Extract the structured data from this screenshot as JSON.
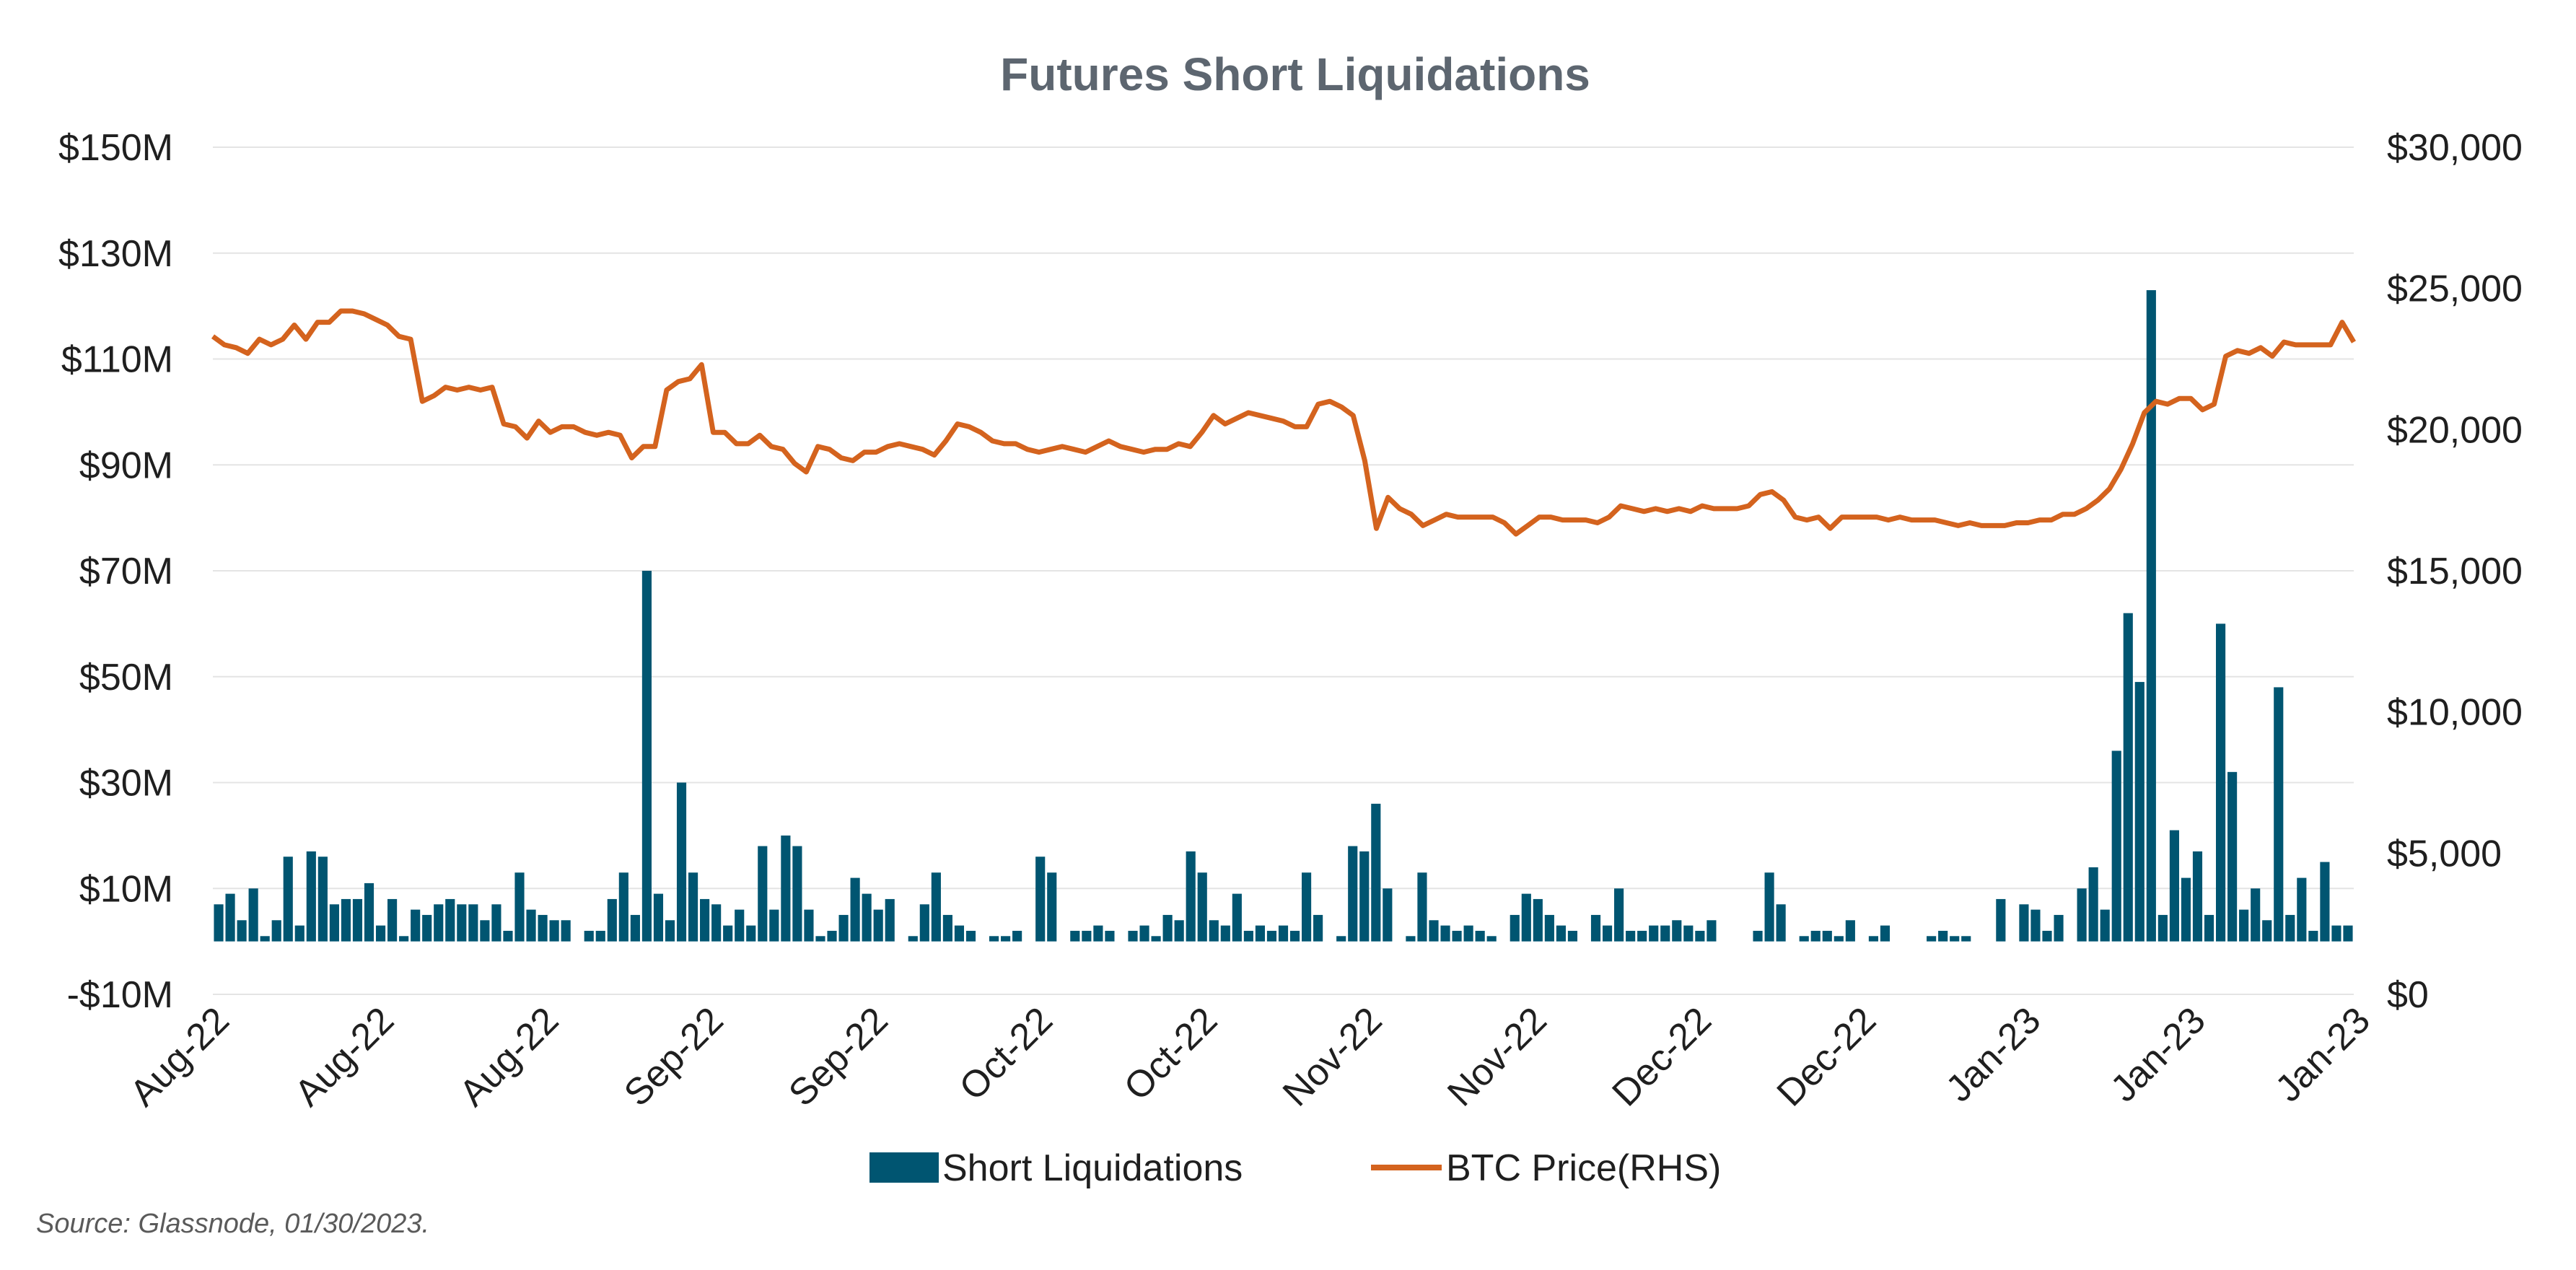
{
  "chart_data": {
    "type": "bar",
    "title": "Futures Short Liquidations",
    "source": "Source: Glassnode, 01/30/2023.",
    "y_left_ticks": [
      "$150M",
      "$130M",
      "$110M",
      "$90M",
      "$70M",
      "$50M",
      "$30M",
      "$10M",
      "-$10M"
    ],
    "y_left_values": [
      150,
      130,
      110,
      90,
      70,
      50,
      30,
      10,
      -10
    ],
    "y_right_ticks": [
      "$30,000",
      "$25,000",
      "$20,000",
      "$15,000",
      "$10,000",
      "$5,000",
      "$0"
    ],
    "y_right_values": [
      30000,
      25000,
      20000,
      15000,
      10000,
      5000,
      0
    ],
    "ylim_left": [
      -10,
      150
    ],
    "ylim_right": [
      0,
      30000
    ],
    "x_ticks": [
      "Aug-22",
      "Aug-22",
      "Aug-22",
      "Sep-22",
      "Sep-22",
      "Oct-22",
      "Oct-22",
      "Nov-22",
      "Nov-22",
      "Dec-22",
      "Dec-22",
      "Jan-23",
      "Jan-23",
      "Jan-23"
    ],
    "grid": "horizontal",
    "legend_position": "bottom-center",
    "colors": {
      "bars": "#005571",
      "line": "#d4631e"
    },
    "series": [
      {
        "name": "Short Liquidations",
        "type": "bar",
        "axis": "left",
        "values": [
          7,
          9,
          4,
          10,
          1,
          4,
          16,
          3,
          17,
          16,
          7,
          8,
          8,
          11,
          3,
          8,
          1,
          6,
          5,
          7,
          8,
          7,
          7,
          4,
          7,
          2,
          13,
          6,
          5,
          4,
          4,
          0,
          2,
          2,
          8,
          13,
          5,
          70,
          9,
          4,
          30,
          13,
          8,
          7,
          3,
          6,
          3,
          18,
          6,
          20,
          18,
          6,
          1,
          2,
          5,
          12,
          9,
          6,
          8,
          0,
          1,
          7,
          13,
          5,
          3,
          2,
          0,
          1,
          1,
          2,
          0,
          16,
          13,
          0,
          2,
          2,
          3,
          2,
          0,
          2,
          3,
          1,
          5,
          4,
          17,
          13,
          4,
          3,
          9,
          2,
          3,
          2,
          3,
          2,
          13,
          5,
          0,
          1,
          18,
          17,
          26,
          10,
          0,
          1,
          13,
          4,
          3,
          2,
          3,
          2,
          1,
          0,
          5,
          9,
          8,
          5,
          3,
          2,
          0,
          5,
          3,
          10,
          2,
          2,
          3,
          3,
          4,
          3,
          2,
          4,
          0,
          0,
          0,
          2,
          13,
          7,
          0,
          1,
          2,
          2,
          1,
          4,
          0,
          1,
          3,
          0,
          0,
          0,
          1,
          2,
          1,
          1,
          0,
          0,
          8,
          0,
          7,
          6,
          2,
          5,
          0,
          10,
          14,
          6,
          36,
          62,
          49,
          123,
          5,
          21,
          12,
          17,
          5,
          60,
          32,
          6,
          10,
          4,
          48,
          5,
          12,
          2,
          15,
          3,
          3
        ]
      },
      {
        "name": "BTC Price(RHS)",
        "type": "line",
        "axis": "right",
        "values": [
          23300,
          23000,
          22900,
          22700,
          23200,
          23000,
          23200,
          23700,
          23200,
          23800,
          23800,
          24200,
          24200,
          24100,
          23900,
          23700,
          23300,
          23200,
          21000,
          21200,
          21500,
          21400,
          21500,
          21400,
          21500,
          20200,
          20100,
          19700,
          20300,
          19900,
          20100,
          20100,
          19900,
          19800,
          19900,
          19800,
          19000,
          19400,
          19400,
          21400,
          21700,
          21800,
          22300,
          19900,
          19900,
          19500,
          19500,
          19800,
          19400,
          19300,
          18800,
          18500,
          19400,
          19300,
          19000,
          18900,
          19200,
          19200,
          19400,
          19500,
          19400,
          19300,
          19100,
          19600,
          20200,
          20100,
          19900,
          19600,
          19500,
          19500,
          19300,
          19200,
          19300,
          19400,
          19300,
          19200,
          19400,
          19600,
          19400,
          19300,
          19200,
          19300,
          19300,
          19500,
          19400,
          19900,
          20500,
          20200,
          20400,
          20600,
          20500,
          20400,
          20300,
          20100,
          20100,
          20900,
          21000,
          20800,
          20500,
          18900,
          16500,
          17600,
          17200,
          17000,
          16600,
          16800,
          17000,
          16900,
          16900,
          16900,
          16900,
          16700,
          16300,
          16600,
          16900,
          16900,
          16800,
          16800,
          16800,
          16700,
          16900,
          17300,
          17200,
          17100,
          17200,
          17100,
          17200,
          17100,
          17300,
          17200,
          17200,
          17200,
          17300,
          17700,
          17800,
          17500,
          16900,
          16800,
          16900,
          16500,
          16900,
          16900,
          16900,
          16900,
          16800,
          16900,
          16800,
          16800,
          16800,
          16700,
          16600,
          16700,
          16600,
          16600,
          16600,
          16700,
          16700,
          16800,
          16800,
          17000,
          17000,
          17200,
          17500,
          17900,
          18600,
          19500,
          20600,
          21000,
          20900,
          21100,
          21100,
          20700,
          20900,
          22600,
          22800,
          22700,
          22900,
          22600,
          23100,
          23000,
          23000,
          23000,
          23000,
          23800,
          23100
        ]
      }
    ]
  }
}
